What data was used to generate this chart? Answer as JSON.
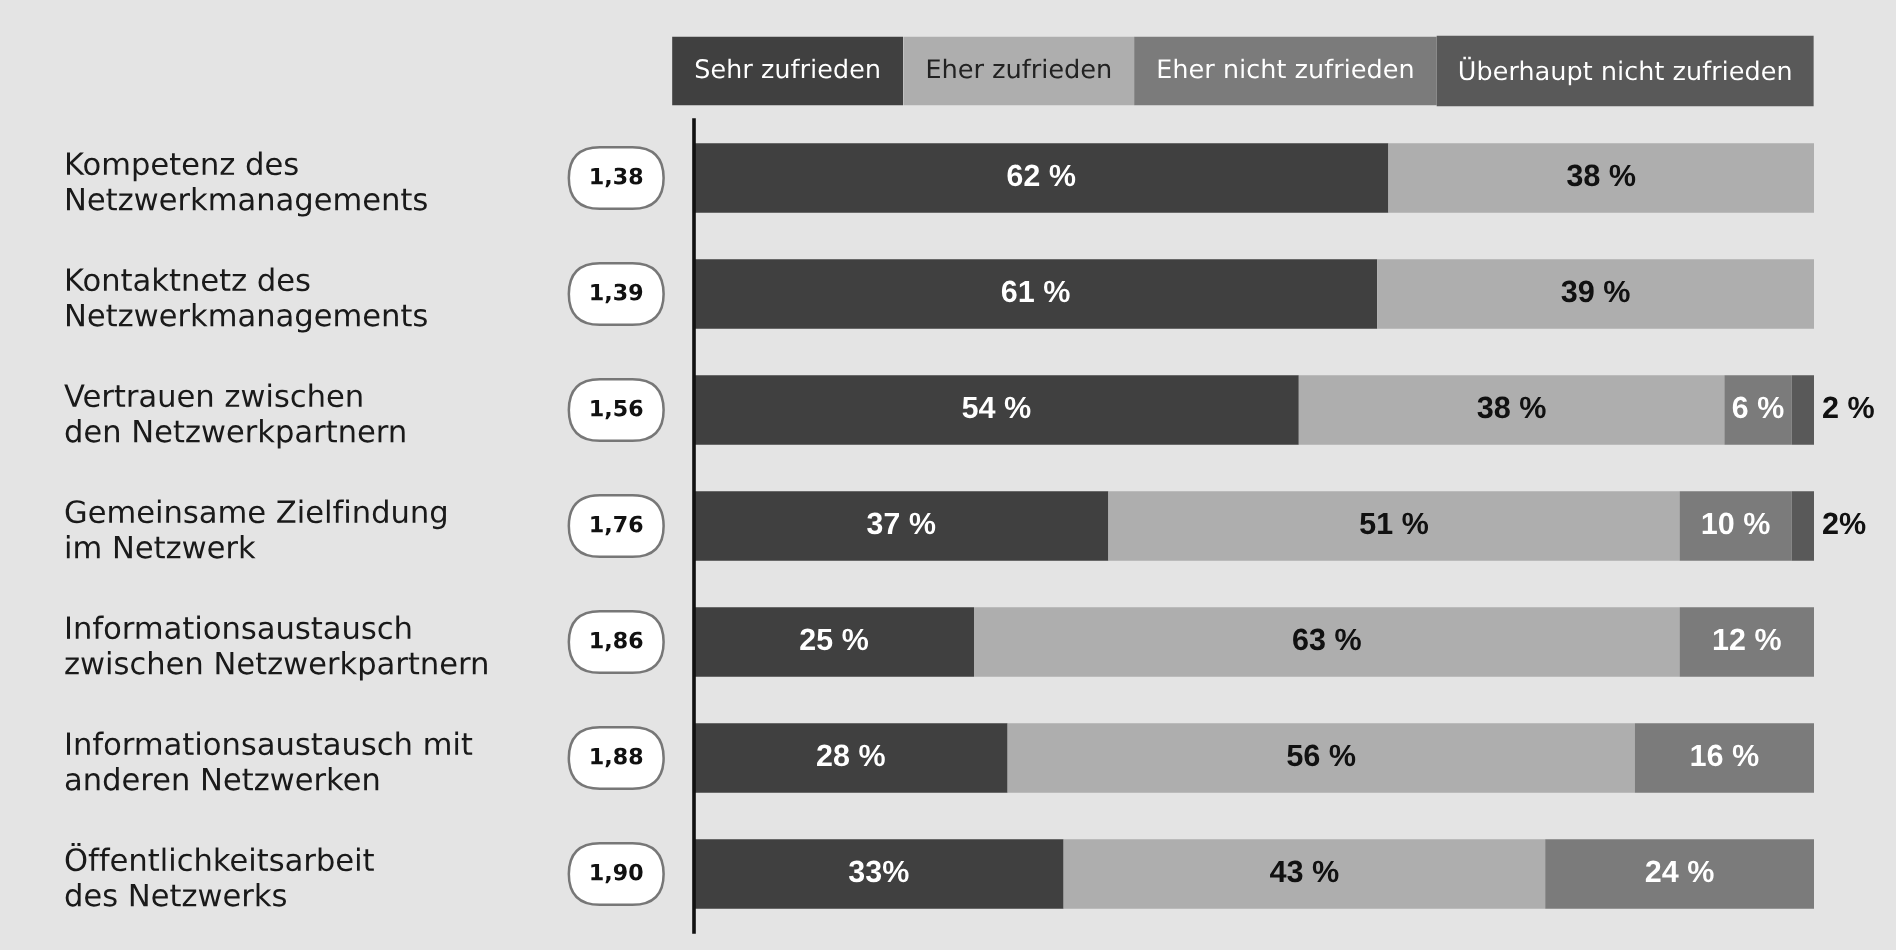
{
  "chart_data": {
    "type": "bar",
    "orientation": "horizontal",
    "stacked": true,
    "legend": "top right",
    "tick_labels": "y",
    "xlim": [
      0,
      100
    ],
    "categories": [
      "Kompetenz des\nNetzwerkmanagements",
      "Kontaktnetz des\nNetzwerkmanagements",
      "Vertrauen zwischen\nden Netzwerkpartnern",
      "Gemeinsame Zielfindung\nim Netzwerk",
      "Informationsaustausch\nzwischen Netzwerkpartnern",
      "Informationsaustausch mit\nanderen Netzwerken",
      "Öffentlichkeitsarbeit\ndes Netzwerks"
    ],
    "series": [
      {
        "name": "Sehr zufrieden",
        "color": "#404040",
        "values": [
          62,
          61,
          54,
          37,
          25,
          28,
          33
        ],
        "value_labels": [
          "62 %",
          "61 %",
          "54 %",
          "37 %",
          "25 %",
          "28 %",
          "33%"
        ]
      },
      {
        "name": "Eher zufrieden",
        "color": "#aeaeae",
        "values": [
          38,
          39,
          38,
          51,
          63,
          56,
          43
        ],
        "value_labels": [
          "38 %",
          "39 %",
          "38 %",
          "51 %",
          "63 %",
          "56 %",
          "43 %"
        ]
      },
      {
        "name": "Eher nicht zufrieden",
        "color": "#7b7b7b",
        "values": [
          null,
          null,
          6,
          10,
          12,
          16,
          24
        ],
        "value_labels": [
          null,
          null,
          "6 %",
          "10 %",
          "12 %",
          "16 %",
          "24 %"
        ]
      },
      {
        "name": "Überhaupt nicht zufrieden",
        "color": "#595959",
        "values": [
          null,
          null,
          2,
          2,
          null,
          null,
          null
        ],
        "value_labels": [
          null,
          null,
          "2 %",
          "2%",
          null,
          null,
          null
        ]
      }
    ],
    "annotations": [
      "1,38",
      "1,39",
      "1,56",
      "1,76",
      "1,86",
      "1,88",
      "1,90"
    ]
  }
}
